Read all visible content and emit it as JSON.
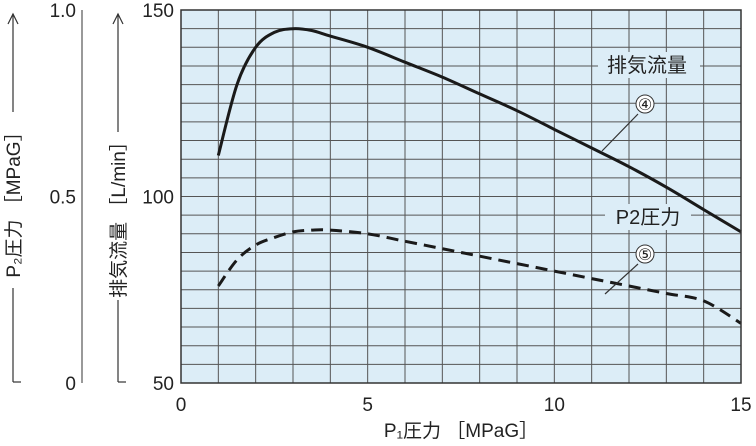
{
  "chart_data": {
    "type": "line",
    "xlabel": "P₁圧力 ［MPaG］",
    "ylabel": "排気流量 ［L/min］",
    "ylabel2": "P₂圧力 ［MPaG］",
    "xlim": [
      0,
      15
    ],
    "ylim": [
      50,
      150
    ],
    "y2lim": [
      0,
      1.0
    ],
    "xticks": [
      0,
      5,
      10,
      15
    ],
    "yticks": [
      50,
      100,
      150
    ],
    "y2ticks": [
      0,
      0.5,
      1.0
    ],
    "xtick_labels": [
      "0",
      "5",
      "10",
      "15"
    ],
    "ytick_labels": [
      "50",
      "100",
      "150"
    ],
    "y2tick_labels": [
      "0",
      "0.5",
      "1.0"
    ],
    "grid": true,
    "background": "#dcedf7",
    "series": [
      {
        "name": "排気流量",
        "axis": "left",
        "style": "solid",
        "marker": "④",
        "x": [
          1.0,
          1.5,
          2.0,
          2.5,
          3.0,
          3.5,
          4.0,
          5.0,
          6.0,
          7.0,
          8.0,
          9.0,
          10.0,
          11.0,
          12.0,
          13.0,
          14.0,
          15.0
        ],
        "y": [
          111,
          130,
          140,
          144,
          145,
          144.5,
          143,
          140,
          136,
          132,
          127.5,
          123,
          118,
          113,
          108,
          102.5,
          96.5,
          90.5
        ]
      },
      {
        "name": "P2圧力",
        "axis": "right",
        "style": "dashed",
        "marker": "⑤",
        "x": [
          1.0,
          1.5,
          2.0,
          2.5,
          3.0,
          3.5,
          4.0,
          5.0,
          6.0,
          7.0,
          8.0,
          9.0,
          10.0,
          11.0,
          12.0,
          13.0,
          14.0,
          15.0
        ],
        "y": [
          0.26,
          0.33,
          0.37,
          0.39,
          0.405,
          0.41,
          0.41,
          0.4,
          0.38,
          0.36,
          0.34,
          0.32,
          0.3,
          0.28,
          0.26,
          0.24,
          0.22,
          0.16
        ]
      }
    ]
  }
}
